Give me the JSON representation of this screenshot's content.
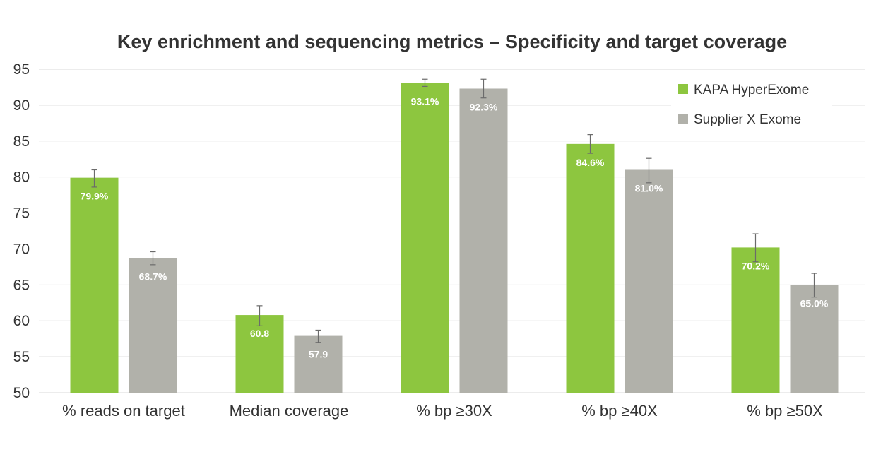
{
  "chart_data": {
    "type": "bar",
    "title": "Key enrichment and sequencing metrics – Specificity and target coverage",
    "categories": [
      "% reads on target",
      "Median coverage",
      "% bp ≥30X",
      "% bp ≥40X",
      "% bp ≥50X"
    ],
    "series": [
      {
        "name": "KAPA HyperExome",
        "color": "#8dc63f",
        "values": [
          79.9,
          60.8,
          93.1,
          84.6,
          70.2
        ],
        "labels": [
          "79.9%",
          "60.8",
          "93.1%",
          "84.6%",
          "70.2%"
        ],
        "error_low": [
          78.6,
          59.3,
          92.6,
          83.3,
          68.2
        ],
        "error_high": [
          81.0,
          62.1,
          93.6,
          85.9,
          72.1
        ]
      },
      {
        "name": "Supplier X Exome",
        "color": "#b1b1aa",
        "values": [
          68.7,
          57.9,
          92.3,
          81.0,
          65.0
        ],
        "labels": [
          "68.7%",
          "57.9",
          "92.3%",
          "81.0%",
          "65.0%"
        ],
        "error_low": [
          67.8,
          57.0,
          91.0,
          79.2,
          63.3
        ],
        "error_high": [
          69.6,
          58.7,
          93.6,
          82.6,
          66.6
        ]
      }
    ],
    "ylim": [
      50,
      95
    ],
    "yticks": [
      50,
      55,
      60,
      65,
      70,
      75,
      80,
      85,
      90,
      95
    ],
    "ytick_labels": [
      "50",
      "55",
      "60",
      "65",
      "70",
      "75",
      "80",
      "85",
      "90",
      "95"
    ],
    "xlabel": "",
    "ylabel": "",
    "grid": true,
    "legend_position": "top-right"
  }
}
